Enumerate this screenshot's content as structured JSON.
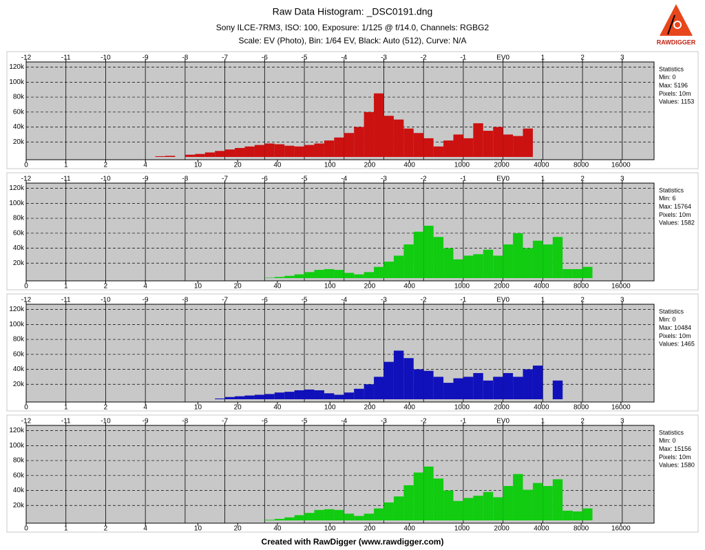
{
  "header": {
    "title": "Raw Data Histogram: _DSC0191.dng",
    "subtitle": "Sony ILCE-7RM3, ISO: 100, Exposure: 1/125 @ f/14.0, Channels: RGBG2",
    "settings": "Scale: EV (Photo), Bin: 1/64 EV, Black: Auto (512), Curve: N/A"
  },
  "logo": "RAWDIGGER",
  "footer": "Created with RawDigger (www.rawdigger.com)",
  "chart_data": [
    {
      "type": "histogram",
      "color": "#cc1111",
      "grid": true,
      "bins": [
        -9,
        -8.75,
        -8.5,
        -8.25,
        -8,
        -7.75,
        -7.5,
        -7.25,
        -7,
        -6.75,
        -6.5,
        -6.25,
        -6,
        -5.75,
        -5.5,
        -5.25,
        -5,
        -4.75,
        -4.5,
        -4.25,
        -4,
        -3.75,
        -3.5,
        -3.25,
        -3,
        -2.75,
        -2.5,
        -2.25,
        -2,
        -1.75,
        -1.5,
        -1.25,
        -1,
        -0.75,
        -0.5,
        -0.25,
        0,
        0.25,
        0.5,
        0.75,
        1,
        1.25,
        1.5,
        1.75,
        2,
        2.25
      ],
      "values": [
        0,
        1000,
        1500,
        0,
        3000,
        4000,
        6000,
        8000,
        10000,
        12000,
        14000,
        16000,
        18000,
        17000,
        15000,
        14000,
        16000,
        18000,
        22000,
        26000,
        32000,
        40000,
        60000,
        85000,
        55000,
        50000,
        38000,
        32000,
        25000,
        14000,
        22000,
        30000,
        25000,
        45000,
        35000,
        40000,
        30000,
        28000,
        38000,
        0,
        0,
        0,
        0,
        0,
        0
      ],
      "xlim": [
        -12,
        3.8
      ],
      "xticks": [
        -12,
        -11,
        -10,
        -9,
        -8,
        -7,
        -6,
        -5,
        -4,
        -3,
        -2,
        -1,
        {
          "value": 0,
          "label": "EV0"
        },
        1,
        2,
        3
      ],
      "x2ticks": [
        0,
        1,
        2,
        4,
        10,
        20,
        40,
        100,
        200,
        400,
        1000,
        2000,
        4000,
        8000,
        16000
      ],
      "ylim": [
        0,
        127000
      ],
      "yticks": [
        {
          "value": 20000,
          "label": "20k"
        },
        {
          "value": 40000,
          "label": "40k"
        },
        {
          "value": 60000,
          "label": "60k"
        },
        {
          "value": 80000,
          "label": "80k"
        },
        {
          "value": 100000,
          "label": "100k"
        },
        {
          "value": 120000,
          "label": "120k"
        }
      ],
      "stats": [
        "Statistics",
        "Min: 0",
        "Max: 5196",
        "Pixels: 10m",
        "Values: 1153"
      ]
    },
    {
      "type": "histogram",
      "color": "#11cc11",
      "grid": true,
      "bins": [
        -9,
        -8.75,
        -8.5,
        -8.25,
        -8,
        -7.75,
        -7.5,
        -7.25,
        -7,
        -6.75,
        -6.5,
        -6.25,
        -6,
        -5.75,
        -5.5,
        -5.25,
        -5,
        -4.75,
        -4.5,
        -4.25,
        -4,
        -3.75,
        -3.5,
        -3.25,
        -3,
        -2.75,
        -2.5,
        -2.25,
        -2,
        -1.75,
        -1.5,
        -1.25,
        -1,
        -0.75,
        -0.5,
        -0.25,
        0,
        0.25,
        0.5,
        0.75,
        1,
        1.25,
        1.5,
        1.75,
        2,
        2.25
      ],
      "values": [
        0,
        0,
        0,
        0,
        0,
        0,
        0,
        0,
        0,
        0,
        0,
        0,
        500,
        1500,
        3000,
        5000,
        8000,
        11000,
        12000,
        11000,
        7000,
        5000,
        8000,
        15000,
        22000,
        30000,
        45000,
        62000,
        70000,
        55000,
        40000,
        25000,
        30000,
        32000,
        38000,
        30000,
        45000,
        60000,
        40000,
        50000,
        45000,
        55000,
        12000,
        12000,
        15000
      ],
      "xlim": [
        -12,
        3.8
      ],
      "xticks": [
        -12,
        -11,
        -10,
        -9,
        -8,
        -7,
        -6,
        -5,
        -4,
        -3,
        -2,
        -1,
        {
          "value": 0,
          "label": "EV0"
        },
        1,
        2,
        3
      ],
      "x2ticks": [
        0,
        1,
        2,
        4,
        10,
        20,
        40,
        100,
        200,
        400,
        1000,
        2000,
        4000,
        8000,
        16000
      ],
      "ylim": [
        0,
        127000
      ],
      "yticks": [
        {
          "value": 20000,
          "label": "20k"
        },
        {
          "value": 40000,
          "label": "40k"
        },
        {
          "value": 60000,
          "label": "60k"
        },
        {
          "value": 80000,
          "label": "80k"
        },
        {
          "value": 100000,
          "label": "100k"
        },
        {
          "value": 120000,
          "label": "120k"
        }
      ],
      "stats": [
        "Statistics",
        "Min: 6",
        "Max: 15764",
        "Pixels: 10m",
        "Values: 1582"
      ]
    },
    {
      "type": "histogram",
      "color": "#1111bb",
      "grid": true,
      "bins": [
        -9,
        -8.75,
        -8.5,
        -8.25,
        -8,
        -7.75,
        -7.5,
        -7.25,
        -7,
        -6.75,
        -6.5,
        -6.25,
        -6,
        -5.75,
        -5.5,
        -5.25,
        -5,
        -4.75,
        -4.5,
        -4.25,
        -4,
        -3.75,
        -3.5,
        -3.25,
        -3,
        -2.75,
        -2.5,
        -2.25,
        -2,
        -1.75,
        -1.5,
        -1.25,
        -1,
        -0.75,
        -0.5,
        -0.25,
        0,
        0.25,
        0.5,
        0.75,
        1,
        1.25,
        1.5,
        1.75,
        2,
        2.25
      ],
      "values": [
        0,
        0,
        0,
        0,
        0,
        0,
        0,
        1000,
        3000,
        4000,
        5000,
        6000,
        7000,
        9000,
        10000,
        12000,
        13000,
        12000,
        8000,
        6000,
        9000,
        14000,
        20000,
        30000,
        50000,
        65000,
        55000,
        40000,
        38000,
        30000,
        22000,
        28000,
        30000,
        35000,
        25000,
        30000,
        35000,
        30000,
        40000,
        45000,
        0,
        25000,
        0,
        0,
        0
      ],
      "xlim": [
        -12,
        3.8
      ],
      "xticks": [
        -12,
        -11,
        -10,
        -9,
        -8,
        -7,
        -6,
        -5,
        -4,
        -3,
        -2,
        -1,
        {
          "value": 0,
          "label": "EV0"
        },
        1,
        2,
        3
      ],
      "x2ticks": [
        0,
        1,
        2,
        4,
        10,
        20,
        40,
        100,
        200,
        400,
        1000,
        2000,
        4000,
        8000,
        16000
      ],
      "ylim": [
        0,
        127000
      ],
      "yticks": [
        {
          "value": 20000,
          "label": "20k"
        },
        {
          "value": 40000,
          "label": "40k"
        },
        {
          "value": 60000,
          "label": "60k"
        },
        {
          "value": 80000,
          "label": "80k"
        },
        {
          "value": 100000,
          "label": "100k"
        },
        {
          "value": 120000,
          "label": "120k"
        }
      ],
      "stats": [
        "Statistics",
        "Min: 0",
        "Max: 10484",
        "Pixels: 10m",
        "Values: 1465"
      ]
    },
    {
      "type": "histogram",
      "color": "#11cc11",
      "grid": true,
      "bins": [
        -9,
        -8.75,
        -8.5,
        -8.25,
        -8,
        -7.75,
        -7.5,
        -7.25,
        -7,
        -6.75,
        -6.5,
        -6.25,
        -6,
        -5.75,
        -5.5,
        -5.25,
        -5,
        -4.75,
        -4.5,
        -4.25,
        -4,
        -3.75,
        -3.5,
        -3.25,
        -3,
        -2.75,
        -2.5,
        -2.25,
        -2,
        -1.75,
        -1.5,
        -1.25,
        -1,
        -0.75,
        -0.5,
        -0.25,
        0,
        0.25,
        0.5,
        0.75,
        1,
        1.25,
        1.5,
        1.75,
        2,
        2.25
      ],
      "values": [
        0,
        0,
        0,
        0,
        0,
        0,
        0,
        0,
        0,
        0,
        0,
        0,
        800,
        2000,
        4000,
        7000,
        10000,
        14000,
        15000,
        14000,
        9000,
        6000,
        9000,
        16000,
        24000,
        32000,
        47000,
        64000,
        72000,
        56000,
        40000,
        26000,
        30000,
        33000,
        38000,
        31000,
        46000,
        62000,
        41000,
        50000,
        46000,
        55000,
        13000,
        12000,
        16000
      ],
      "xlim": [
        -12,
        3.8
      ],
      "xticks": [
        -12,
        -11,
        -10,
        -9,
        -8,
        -7,
        -6,
        -5,
        -4,
        -3,
        -2,
        -1,
        {
          "value": 0,
          "label": "EV0"
        },
        1,
        2,
        3
      ],
      "x2ticks": [
        0,
        1,
        2,
        4,
        10,
        20,
        40,
        100,
        200,
        400,
        1000,
        2000,
        4000,
        8000,
        16000
      ],
      "ylim": [
        0,
        127000
      ],
      "yticks": [
        {
          "value": 20000,
          "label": "20k"
        },
        {
          "value": 40000,
          "label": "40k"
        },
        {
          "value": 60000,
          "label": "60k"
        },
        {
          "value": 80000,
          "label": "80k"
        },
        {
          "value": 100000,
          "label": "100k"
        },
        {
          "value": 120000,
          "label": "120k"
        }
      ],
      "stats": [
        "Statistics",
        "Min: 0",
        "Max: 15156",
        "Pixels: 10m",
        "Values: 1580"
      ]
    }
  ]
}
